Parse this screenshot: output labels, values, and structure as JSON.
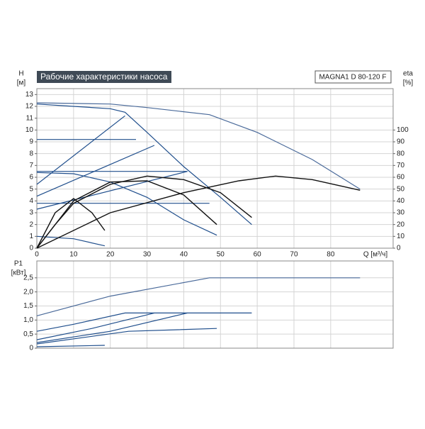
{
  "chart_data": [
    {
      "type": "line",
      "title": "Рабочие характеристики насоса",
      "model": "MAGNA1 D 80-120 F",
      "y_label": "H",
      "y_unit": "[м]",
      "y2_label": "eta",
      "y2_unit": "[%]",
      "x_label": "Q [м³/ч]",
      "xlim": [
        0,
        97
      ],
      "xticks": [
        0,
        10,
        20,
        30,
        40,
        50,
        60,
        70,
        80
      ],
      "ylim": [
        0,
        13.5
      ],
      "yticks": [
        0,
        1,
        2,
        3,
        4,
        5,
        6,
        7,
        8,
        9,
        10,
        11,
        12,
        13
      ],
      "y2lim": [
        0,
        135
      ],
      "y2ticks": [
        0,
        10,
        20,
        30,
        40,
        50,
        60,
        70,
        80,
        90,
        100
      ],
      "grid": true,
      "series": [
        {
          "color": "#4a6a9a",
          "x": [
            0,
            20,
            30,
            47,
            60,
            75,
            88
          ],
          "values": [
            12.3,
            12.2,
            11.9,
            11.3,
            9.8,
            7.5,
            5.0
          ]
        },
        {
          "color": "#1f4e8c",
          "x": [
            0,
            10,
            20,
            24,
            30,
            40,
            50,
            58.5
          ],
          "values": [
            12.2,
            12.0,
            11.8,
            11.5,
            9.8,
            6.9,
            4.3,
            2.0
          ]
        },
        {
          "color": "#1f4e8c",
          "x": [
            0,
            27
          ],
          "values": [
            9.2,
            9.2
          ]
        },
        {
          "color": "#1f4e8c",
          "x": [
            0,
            41
          ],
          "values": [
            6.5,
            6.5
          ]
        },
        {
          "color": "#1f4e8c",
          "x": [
            0,
            47
          ],
          "values": [
            3.8,
            3.8
          ]
        },
        {
          "color": "#1f4e8c",
          "x": [
            0,
            24
          ],
          "values": [
            5.4,
            11.2
          ]
        },
        {
          "color": "#1f4e8c",
          "x": [
            0,
            32
          ],
          "values": [
            4.4,
            8.7
          ]
        },
        {
          "color": "#1f4e8c",
          "x": [
            0,
            41
          ],
          "values": [
            3.3,
            6.5
          ]
        },
        {
          "color": "#1f4e8c",
          "x": [
            0,
            10,
            20,
            30,
            40,
            49
          ],
          "values": [
            6.4,
            6.3,
            5.6,
            4.3,
            2.4,
            1.1
          ]
        },
        {
          "color": "#1f4e8c",
          "x": [
            0,
            10,
            18.5
          ],
          "values": [
            1.0,
            0.8,
            0.2
          ]
        },
        {
          "color": "#111111",
          "axis": "y2",
          "x": [
            0,
            5,
            10,
            20,
            30,
            40,
            50,
            58.5
          ],
          "values": [
            0,
            20,
            38,
            54,
            61,
            58,
            47,
            26
          ]
        },
        {
          "color": "#111111",
          "axis": "y2",
          "x": [
            0,
            10,
            20,
            30,
            40,
            49
          ],
          "values": [
            0,
            40,
            56,
            57,
            45,
            20
          ]
        },
        {
          "color": "#111111",
          "axis": "y2",
          "x": [
            0,
            5,
            10,
            15,
            18.5
          ],
          "values": [
            0,
            30,
            42,
            30,
            15
          ]
        },
        {
          "color": "#111111",
          "axis": "y2",
          "x": [
            0,
            20,
            40,
            55,
            65,
            75,
            88
          ],
          "values": [
            0,
            30,
            47,
            57,
            61,
            58,
            49
          ]
        }
      ]
    },
    {
      "type": "line",
      "y_label": "P1",
      "y_unit": "[кВт]",
      "xlim": [
        0,
        97
      ],
      "ylim": [
        0,
        3.1
      ],
      "yticks": [
        0,
        {
          "value": 0.5,
          "label": "0,5"
        },
        {
          "value": 1.0,
          "label": "1,0"
        },
        {
          "value": 1.5,
          "label": "1,5"
        },
        {
          "value": 2.0,
          "label": "2,0"
        },
        {
          "value": 2.5,
          "label": "2,5"
        }
      ],
      "grid": true,
      "series": [
        {
          "color": "#4a6a9a",
          "x": [
            0,
            20,
            47,
            88
          ],
          "values": [
            1.15,
            1.85,
            2.5,
            2.5
          ]
        },
        {
          "color": "#1f4e8c",
          "x": [
            0,
            10,
            24,
            58.5
          ],
          "values": [
            0.6,
            0.85,
            1.25,
            1.25
          ]
        },
        {
          "color": "#1f4e8c",
          "x": [
            0,
            15,
            32
          ],
          "values": [
            0.3,
            0.7,
            1.25
          ]
        },
        {
          "color": "#1f4e8c",
          "x": [
            0,
            20,
            41
          ],
          "values": [
            0.2,
            0.6,
            1.25
          ]
        },
        {
          "color": "#1f4e8c",
          "x": [
            0,
            25,
            49
          ],
          "values": [
            0.15,
            0.6,
            0.7
          ]
        },
        {
          "color": "#1f4e8c",
          "x": [
            0,
            18.5
          ],
          "values": [
            0.05,
            0.1
          ]
        }
      ]
    }
  ]
}
